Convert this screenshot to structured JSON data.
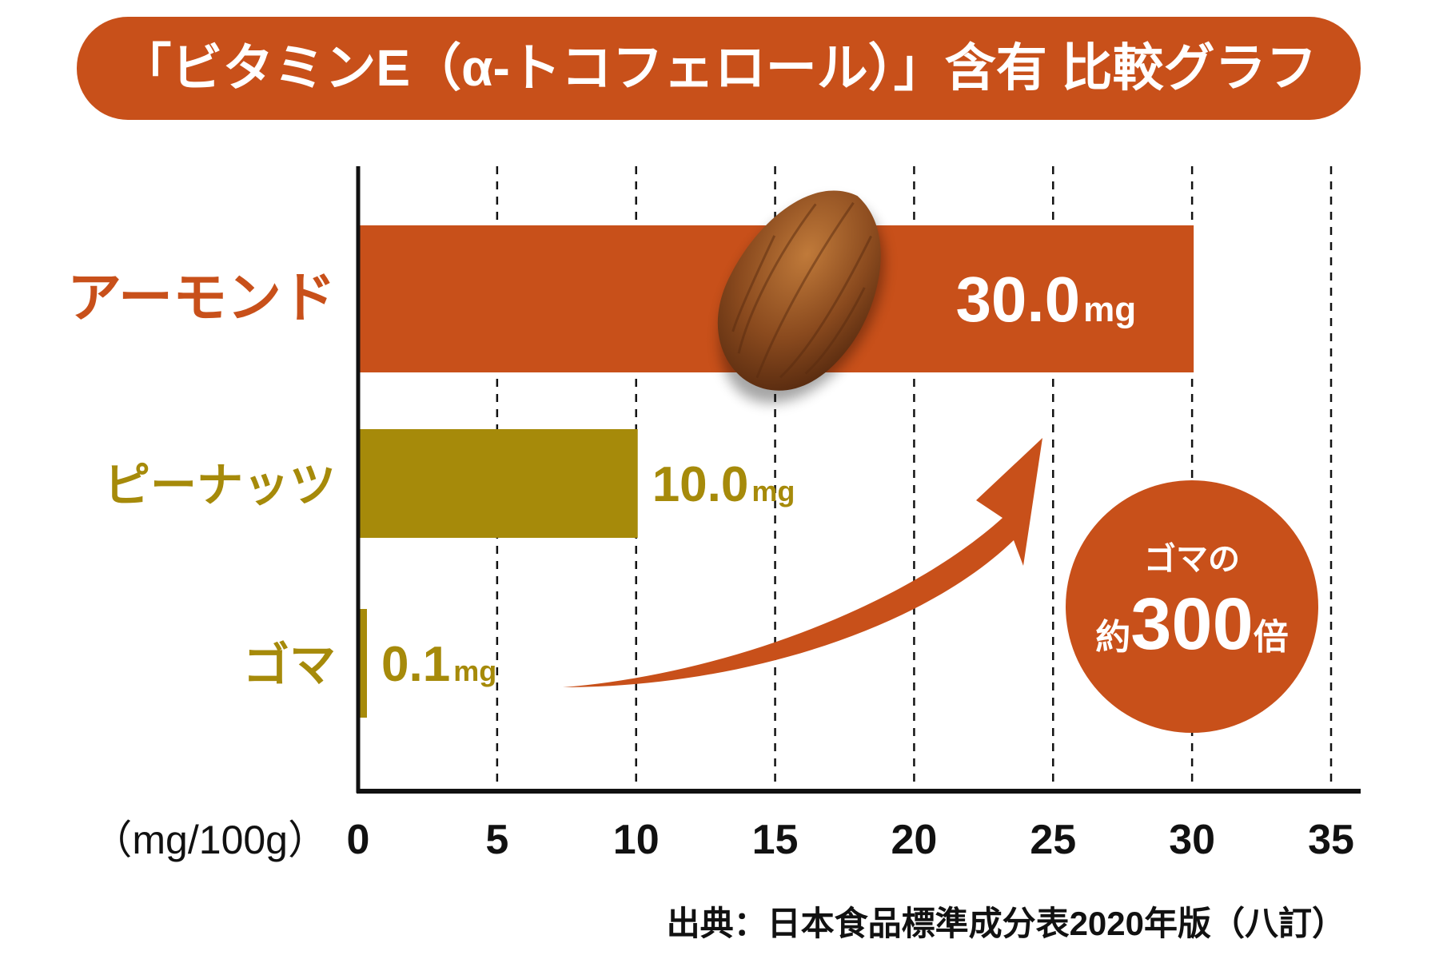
{
  "chart_data": {
    "type": "bar",
    "orientation": "horizontal",
    "title": "「ビタミンE（α-トコフェロール）」含有 比較グラフ",
    "unit_label": "（mg/100g）",
    "categories": [
      "アーモンド",
      "ピーナッツ",
      "ゴマ"
    ],
    "values": [
      30.0,
      10.0,
      0.1
    ],
    "value_labels": [
      "30.0",
      "10.0",
      "0.1"
    ],
    "value_unit": "mg",
    "bar_colors": [
      "#C8501A",
      "#A68A0A",
      "#A68A0A"
    ],
    "xlim": [
      0,
      35
    ],
    "xticks": [
      0,
      5,
      10,
      15,
      20,
      25,
      30,
      35
    ],
    "grid": "vertical dashed",
    "annotation": {
      "line1": "ゴマの",
      "prefix": "約",
      "number": "300",
      "suffix": "倍"
    },
    "source": "出典：日本食品標準成分表2020年版（八訂）"
  },
  "colors": {
    "accent": "#C8501A",
    "olive": "#A68A0A",
    "axis": "#111111"
  }
}
